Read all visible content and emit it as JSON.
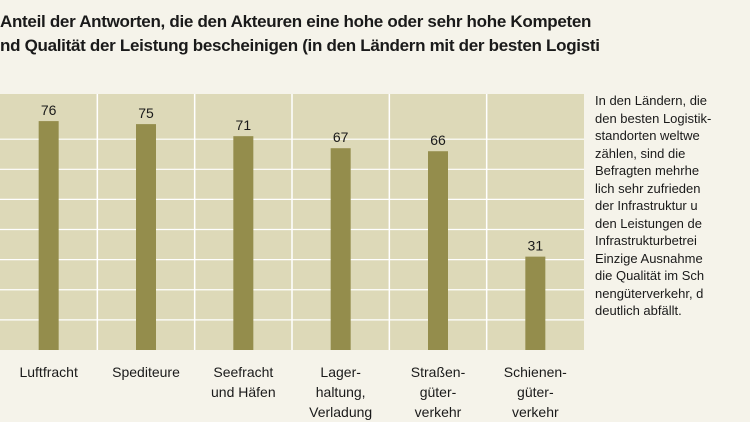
{
  "title_lines": [
    "Anteil der Antworten, die den Akteuren eine hohe oder sehr hohe Kompeten",
    "nd Qualität der Leistung bescheinigen (in den Ländern mit der besten Logisti"
  ],
  "colors": {
    "background": "#f5f3ea",
    "plot_background": "#ddd9b8",
    "bar": "#948d4c",
    "grid": "#ffffff"
  },
  "chart_data": {
    "type": "bar",
    "title": "",
    "xlabel": "",
    "ylabel": "",
    "ylim": [
      0,
      85
    ],
    "grid": true,
    "categories": [
      [
        "Luftfracht"
      ],
      [
        "Spediteure"
      ],
      [
        "Seefracht",
        "und Häfen"
      ],
      [
        "Lager-",
        "haltung,",
        "Verladung"
      ],
      [
        "Straßen-",
        "güter-",
        "verkehr"
      ],
      [
        "Schienen-",
        "güter-",
        "verkehr"
      ]
    ],
    "values": [
      76,
      75,
      71,
      67,
      66,
      31
    ],
    "data_labels": [
      "76",
      "75",
      "71",
      "67",
      "66",
      "31"
    ]
  },
  "side_text": [
    "In den Ländern, die",
    "den besten Logistik-",
    "standorten weltwe",
    "zählen, sind die",
    "Befragten mehrhe",
    "lich sehr zufrieden",
    "der Infrastruktur u",
    "den Leistungen de",
    "Infrastrukturbetrei",
    "Einzige Ausnahme",
    "die Qualität im Sch",
    "nengüterverkehr, d",
    "deutlich abfällt."
  ]
}
